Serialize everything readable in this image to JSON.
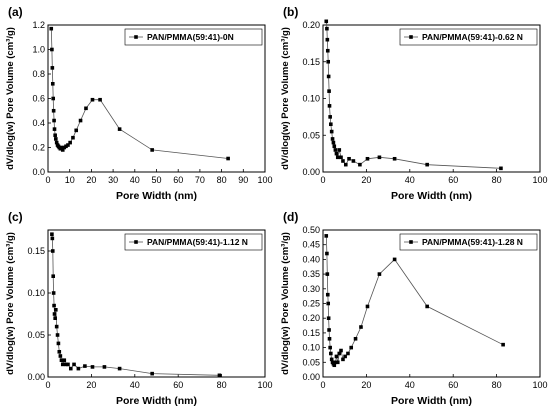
{
  "chart_data": [
    {
      "type": "line",
      "panel_label": "(a)",
      "xlabel": "Pore Width (nm)",
      "ylabel": "dV/dlog(w) Pore Volume (cm³/g)",
      "xlim": [
        0,
        100
      ],
      "ylim": [
        0,
        1.2
      ],
      "xticks": [
        0,
        10,
        20,
        30,
        40,
        50,
        60,
        70,
        80,
        90,
        100
      ],
      "yticks": [
        0.0,
        0.2,
        0.4,
        0.6,
        0.8,
        1.0,
        1.2
      ],
      "ytick_labels": [
        "0.0",
        "0.2",
        "0.4",
        "0.6",
        "0.8",
        "1.0",
        "1.2"
      ],
      "legend_position": "top-right",
      "grid": false,
      "series": [
        {
          "name": "PAN/PMMA(59:41)-0N",
          "x": [
            1.5,
            1.8,
            2.0,
            2.2,
            2.4,
            2.6,
            2.8,
            3.0,
            3.3,
            3.6,
            4.0,
            4.4,
            4.8,
            5.2,
            5.7,
            6.2,
            6.8,
            7.5,
            8.3,
            9.2,
            10.2,
            11.5,
            13.0,
            15.0,
            17.5,
            20.5,
            24.0,
            33.0,
            48.0,
            83.0
          ],
          "y": [
            1.17,
            1.0,
            0.85,
            0.72,
            0.6,
            0.5,
            0.42,
            0.35,
            0.3,
            0.27,
            0.24,
            0.22,
            0.21,
            0.2,
            0.19,
            0.2,
            0.18,
            0.2,
            0.21,
            0.22,
            0.24,
            0.28,
            0.34,
            0.42,
            0.52,
            0.59,
            0.59,
            0.35,
            0.18,
            0.11
          ]
        }
      ]
    },
    {
      "type": "line",
      "panel_label": "(b)",
      "xlabel": "Pore Width (nm)",
      "ylabel": "dV/dlog(w) Pore Volume (cm³/g)",
      "xlim": [
        0,
        100
      ],
      "ylim": [
        0,
        0.2
      ],
      "xticks": [
        0,
        20,
        40,
        60,
        80,
        100
      ],
      "yticks": [
        0.0,
        0.05,
        0.1,
        0.15,
        0.2
      ],
      "ytick_labels": [
        "0.00",
        "0.05",
        "0.10",
        "0.15",
        "0.20"
      ],
      "legend_position": "top-right",
      "grid": false,
      "series": [
        {
          "name": "PAN/PMMA(59:41)-0.62 N",
          "x": [
            1.5,
            1.8,
            2.0,
            2.2,
            2.4,
            2.6,
            2.8,
            3.0,
            3.3,
            3.6,
            4.0,
            4.4,
            4.8,
            5.2,
            5.7,
            6.2,
            6.8,
            7.5,
            8.3,
            9.2,
            10.5,
            12.0,
            14.0,
            17.0,
            20.5,
            26.0,
            33.0,
            48.0,
            82.0
          ],
          "y": [
            0.205,
            0.195,
            0.18,
            0.165,
            0.15,
            0.13,
            0.11,
            0.09,
            0.075,
            0.065,
            0.055,
            0.045,
            0.04,
            0.035,
            0.03,
            0.025,
            0.02,
            0.03,
            0.02,
            0.015,
            0.01,
            0.018,
            0.015,
            0.01,
            0.018,
            0.02,
            0.018,
            0.01,
            0.005
          ]
        }
      ]
    },
    {
      "type": "line",
      "panel_label": "(c)",
      "xlabel": "Pore Width (nm)",
      "ylabel": "dV/dlog(w) Pore Volume (cm³/g)",
      "xlim": [
        0,
        100
      ],
      "ylim": [
        0,
        0.175
      ],
      "xticks": [
        0,
        20,
        40,
        60,
        80,
        100
      ],
      "yticks": [
        0.0,
        0.05,
        0.1,
        0.15
      ],
      "ytick_labels": [
        "0.00",
        "0.05",
        "0.10",
        "0.15"
      ],
      "legend_position": "top-right",
      "grid": false,
      "series": [
        {
          "name": "PAN/PMMA(59:41)-1.12 N",
          "x": [
            1.8,
            2.0,
            2.2,
            2.4,
            2.6,
            2.8,
            3.0,
            3.3,
            3.6,
            4.0,
            4.4,
            4.8,
            5.2,
            5.7,
            6.2,
            6.8,
            7.5,
            8.3,
            9.2,
            10.5,
            12.0,
            14.0,
            17.0,
            20.5,
            26.0,
            33.0,
            48.0,
            79.0
          ],
          "y": [
            0.17,
            0.165,
            0.15,
            0.12,
            0.1,
            0.085,
            0.075,
            0.07,
            0.08,
            0.06,
            0.05,
            0.04,
            0.03,
            0.025,
            0.02,
            0.015,
            0.02,
            0.015,
            0.015,
            0.01,
            0.015,
            0.01,
            0.013,
            0.012,
            0.012,
            0.01,
            0.004,
            0.002
          ]
        }
      ]
    },
    {
      "type": "line",
      "panel_label": "(d)",
      "xlabel": "Pore Width (nm)",
      "ylabel": "dV/dlog(w) Pore Volume (cm³/g)",
      "xlim": [
        0,
        100
      ],
      "ylim": [
        0,
        0.5
      ],
      "xticks": [
        0,
        20,
        40,
        60,
        80,
        100
      ],
      "yticks": [
        0.0,
        0.05,
        0.1,
        0.15,
        0.2,
        0.25,
        0.3,
        0.35,
        0.4,
        0.45,
        0.5
      ],
      "ytick_labels": [
        "0.00",
        "0.05",
        "0.10",
        "0.15",
        "0.20",
        "0.25",
        "0.30",
        "0.35",
        "0.40",
        "0.45",
        "0.50"
      ],
      "legend_position": "top-right",
      "grid": false,
      "series": [
        {
          "name": "PAN/PMMA(59:41)-1.28 N",
          "x": [
            1.5,
            1.8,
            2.0,
            2.2,
            2.4,
            2.6,
            2.8,
            3.0,
            3.3,
            3.6,
            4.0,
            4.4,
            4.8,
            5.2,
            5.7,
            6.2,
            6.8,
            7.5,
            8.3,
            9.2,
            10.2,
            11.5,
            13.0,
            15.0,
            17.5,
            20.5,
            26.0,
            33.0,
            48.0,
            83.0
          ],
          "y": [
            0.48,
            0.42,
            0.35,
            0.28,
            0.25,
            0.2,
            0.16,
            0.13,
            0.1,
            0.08,
            0.06,
            0.05,
            0.045,
            0.04,
            0.05,
            0.07,
            0.05,
            0.08,
            0.09,
            0.06,
            0.07,
            0.08,
            0.1,
            0.13,
            0.17,
            0.24,
            0.35,
            0.4,
            0.24,
            0.11
          ]
        }
      ]
    }
  ]
}
